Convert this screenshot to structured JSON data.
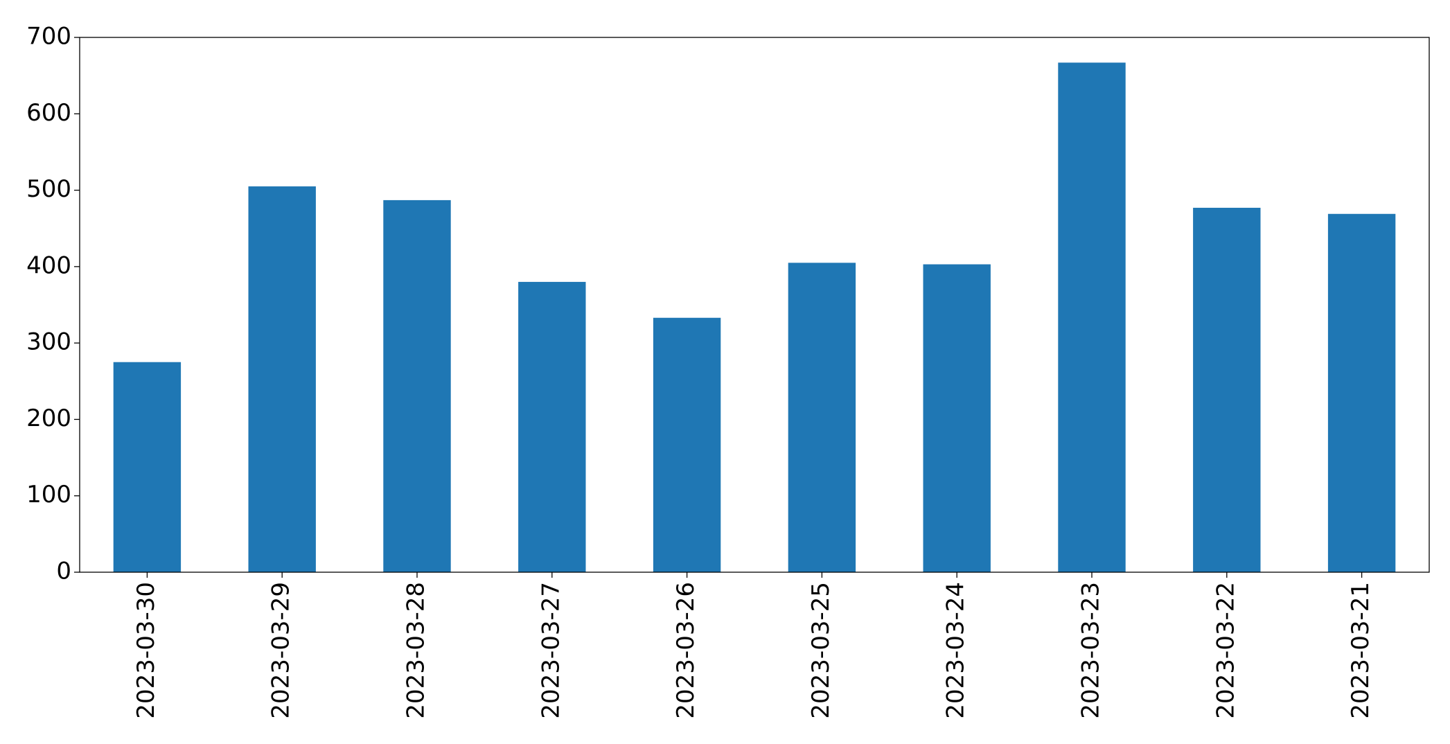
{
  "chart_data": {
    "type": "bar",
    "categories": [
      "2023-03-30",
      "2023-03-29",
      "2023-03-28",
      "2023-03-27",
      "2023-03-26",
      "2023-03-25",
      "2023-03-24",
      "2023-03-23",
      "2023-03-22",
      "2023-03-21"
    ],
    "values": [
      275,
      505,
      487,
      380,
      333,
      405,
      403,
      667,
      477,
      469
    ],
    "color": "#1f77b4",
    "ylim": [
      0,
      700
    ],
    "yticks": [
      0,
      100,
      200,
      300,
      400,
      500,
      600,
      700
    ],
    "grid": false
  }
}
